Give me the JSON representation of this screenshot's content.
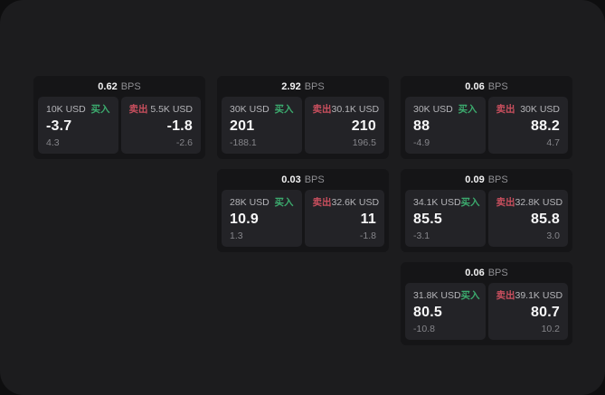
{
  "labels": {
    "buy": "买入",
    "sell": "卖出",
    "bps_suffix": "BPS"
  },
  "colors": {
    "outer_bg": "#0e0e0f",
    "window_bg": "#1c1c1e",
    "card_bg": "#151517",
    "panel_bg": "#232327",
    "buy_green": "#3cab6e",
    "sell_red": "#c94f5e"
  },
  "cards": [
    {
      "row": 1,
      "col": 1,
      "bps": "0.62",
      "buy": {
        "amount": "10K USD",
        "value": "-3.7",
        "sub": "4.3"
      },
      "sell": {
        "amount": "5.5K USD",
        "value": "-1.8",
        "sub": "-2.6"
      }
    },
    {
      "row": 1,
      "col": 2,
      "bps": "2.92",
      "buy": {
        "amount": "30K USD",
        "value": "201",
        "sub": "-188.1"
      },
      "sell": {
        "amount": "30.1K USD",
        "value": "210",
        "sub": "196.5"
      }
    },
    {
      "row": 1,
      "col": 3,
      "bps": "0.06",
      "buy": {
        "amount": "30K USD",
        "value": "88",
        "sub": "-4.9"
      },
      "sell": {
        "amount": "30K USD",
        "value": "88.2",
        "sub": "4.7"
      }
    },
    {
      "row": 2,
      "col": 2,
      "bps": "0.03",
      "buy": {
        "amount": "28K USD",
        "value": "10.9",
        "sub": "1.3"
      },
      "sell": {
        "amount": "32.6K USD",
        "value": "11",
        "sub": "-1.8"
      }
    },
    {
      "row": 2,
      "col": 3,
      "bps": "0.09",
      "buy": {
        "amount": "34.1K USD",
        "value": "85.5",
        "sub": "-3.1"
      },
      "sell": {
        "amount": "32.8K USD",
        "value": "85.8",
        "sub": "3.0"
      }
    },
    {
      "row": 3,
      "col": 3,
      "bps": "0.06",
      "buy": {
        "amount": "31.8K USD",
        "value": "80.5",
        "sub": "-10.8"
      },
      "sell": {
        "amount": "39.1K USD",
        "value": "80.7",
        "sub": "10.2"
      }
    }
  ]
}
